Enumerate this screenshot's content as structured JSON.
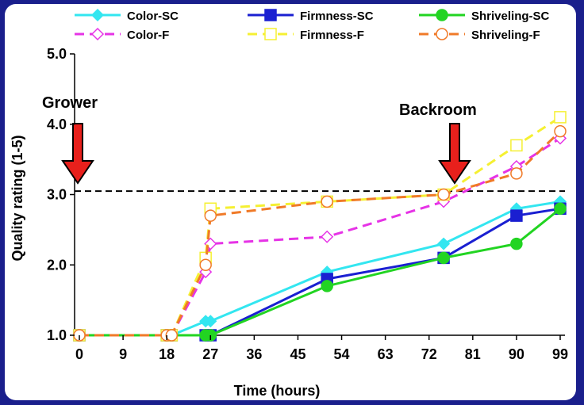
{
  "chart_data": {
    "type": "line",
    "title": "",
    "xlabel": "Time (hours)",
    "ylabel": "Quality rating (1-5)",
    "xlim": [
      0,
      99
    ],
    "ylim": [
      1.0,
      5.0
    ],
    "x_ticks": [
      0,
      9,
      18,
      27,
      36,
      45,
      54,
      63,
      72,
      81,
      90,
      99
    ],
    "x_tick_labels": [
      "0",
      "9",
      "18",
      "27",
      "36",
      "45",
      "54",
      "63",
      "72",
      "81",
      "90",
      "99"
    ],
    "y_ticks": [
      1.0,
      2.0,
      3.0,
      4.0,
      5.0
    ],
    "y_tick_labels": [
      "1.0",
      "2.0",
      "3.0",
      "4.0",
      "5.0"
    ],
    "threshold": 3.05,
    "annotations": [
      {
        "id": "grower",
        "label": "Grower",
        "x": 0
      },
      {
        "id": "backroom",
        "label": "Backroom",
        "x": 75
      }
    ],
    "legend_position": "top",
    "series": [
      {
        "name": "Color-SC",
        "color": "#33e6f0",
        "dash": "solid",
        "marker": "diamond",
        "filled": true,
        "x": [
          0,
          18,
          19,
          26,
          27,
          51,
          75,
          90,
          99
        ],
        "y": [
          1.0,
          1.0,
          1.0,
          1.2,
          1.2,
          1.9,
          2.3,
          2.8,
          2.9
        ]
      },
      {
        "name": "Firmness-SC",
        "color": "#1a1fd1",
        "dash": "solid",
        "marker": "square",
        "filled": true,
        "x": [
          0,
          18,
          19,
          26,
          27,
          51,
          75,
          90,
          99
        ],
        "y": [
          1.0,
          1.0,
          1.0,
          1.0,
          1.0,
          1.8,
          2.1,
          2.7,
          2.8
        ]
      },
      {
        "name": "Shriveling-SC",
        "color": "#22d422",
        "dash": "solid",
        "marker": "circle",
        "filled": true,
        "x": [
          0,
          18,
          19,
          26,
          27,
          51,
          75,
          90,
          99
        ],
        "y": [
          1.0,
          1.0,
          1.0,
          1.0,
          1.0,
          1.7,
          2.1,
          2.3,
          2.8
        ]
      },
      {
        "name": "Color-F",
        "color": "#e633e6",
        "dash": "dash",
        "marker": "diamond",
        "filled": false,
        "x": [
          0,
          18,
          19,
          26,
          27,
          51,
          75,
          90,
          99
        ],
        "y": [
          1.0,
          1.0,
          1.0,
          1.9,
          2.3,
          2.4,
          2.9,
          3.4,
          3.8
        ]
      },
      {
        "name": "Firmness-F",
        "color": "#f5f032",
        "dash": "dash",
        "marker": "square",
        "filled": false,
        "x": [
          0,
          18,
          19,
          26,
          27,
          51,
          75,
          90,
          99
        ],
        "y": [
          1.0,
          1.0,
          1.0,
          2.1,
          2.8,
          2.9,
          3.0,
          3.7,
          4.1
        ]
      },
      {
        "name": "Shriveling-F",
        "color": "#f07a28",
        "dash": "dash",
        "marker": "circle",
        "filled": false,
        "x": [
          0,
          18,
          19,
          26,
          27,
          51,
          75,
          90,
          99
        ],
        "y": [
          1.0,
          1.0,
          1.0,
          2.0,
          2.7,
          2.9,
          3.0,
          3.3,
          3.9
        ]
      }
    ]
  }
}
